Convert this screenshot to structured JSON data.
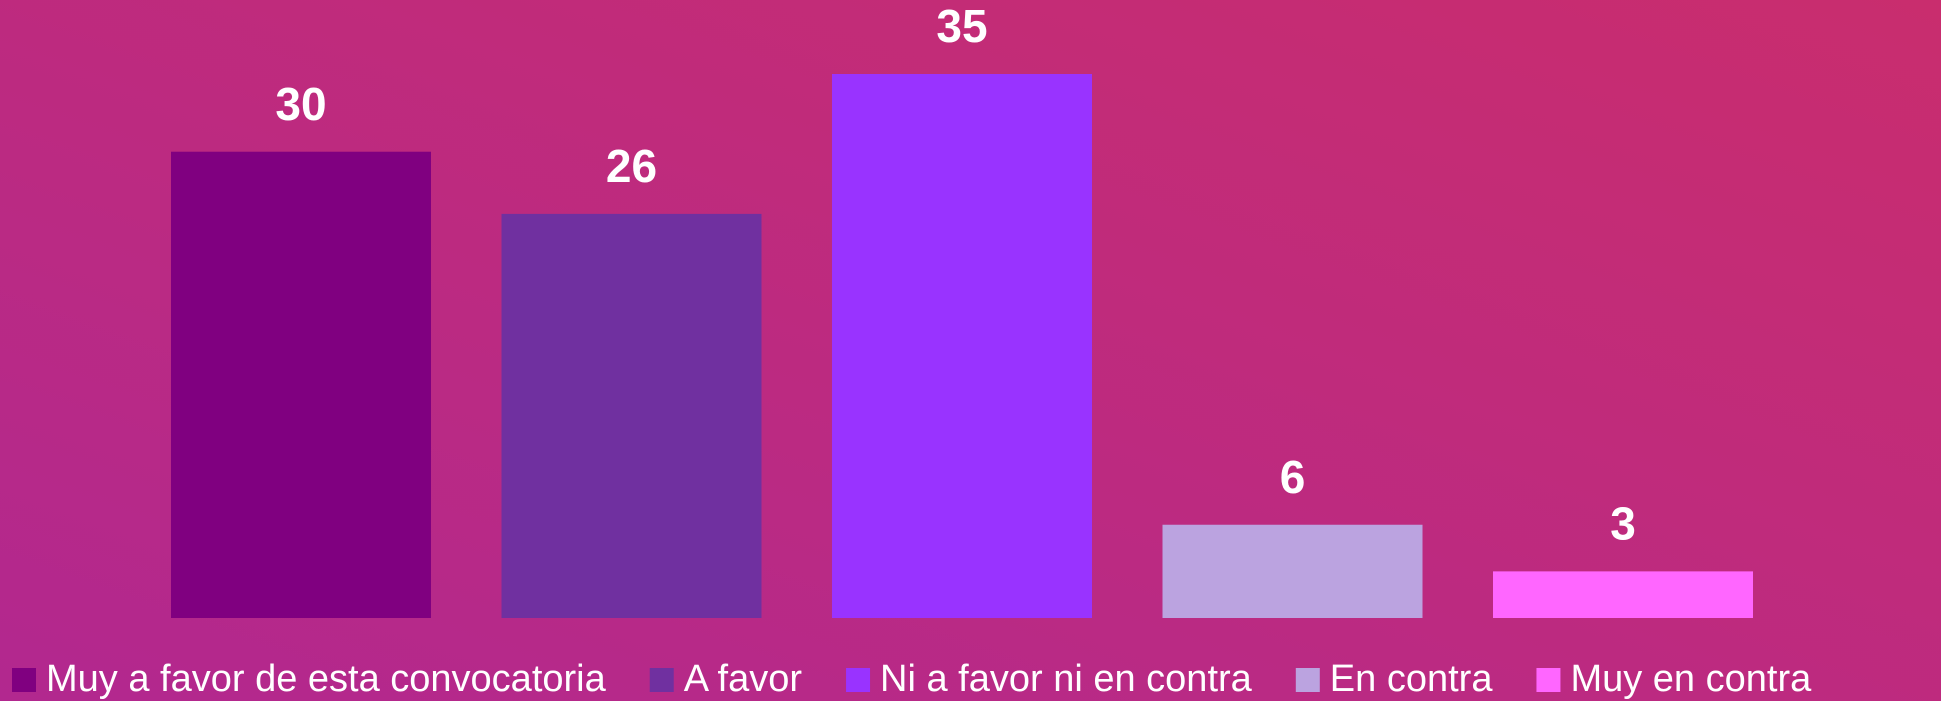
{
  "chart_data": {
    "type": "bar",
    "categories": [
      "Muy a favor de esta convocatoria",
      "A favor",
      "Ni a favor ni en contra",
      "En contra",
      "Muy en contra"
    ],
    "values": [
      30,
      26,
      35,
      6,
      3
    ],
    "colors": [
      "#800080",
      "#7030a0",
      "#9933ff",
      "#bba3e0",
      "#ff66ff"
    ],
    "legend": "bottom"
  }
}
